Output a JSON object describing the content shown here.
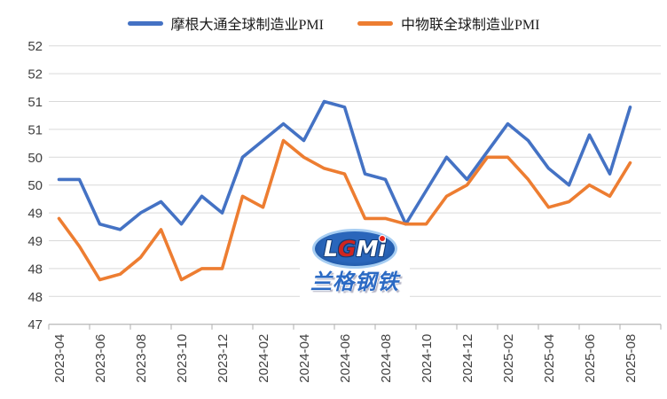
{
  "chart_data": {
    "type": "line",
    "title": "",
    "xlabel": "",
    "ylabel": "",
    "x": [
      "2023-04",
      "2023-05",
      "2023-06",
      "2023-07",
      "2023-08",
      "2023-09",
      "2023-10",
      "2023-11",
      "2023-12",
      "2024-01",
      "2024-02",
      "2024-03",
      "2024-04",
      "2024-05",
      "2024-06",
      "2024-07",
      "2024-08",
      "2024-09",
      "2024-10",
      "2024-11",
      "2024-12",
      "2025-01",
      "2025-02",
      "2025-03",
      "2025-04",
      "2025-05",
      "2025-06",
      "2025-07",
      "2025-08"
    ],
    "series": [
      {
        "name": "摩根大通全球制造业PMI",
        "color": "#4472C4",
        "values": [
          49.6,
          49.6,
          48.8,
          48.7,
          49.0,
          49.2,
          48.8,
          49.3,
          49.0,
          50.0,
          50.3,
          50.6,
          50.3,
          51.0,
          50.9,
          49.7,
          49.6,
          48.8,
          49.4,
          50.0,
          49.6,
          50.1,
          50.6,
          50.3,
          49.8,
          49.5,
          50.4,
          49.7,
          50.9
        ]
      },
      {
        "name": "中物联全球制造业PMI",
        "color": "#ED7D31",
        "values": [
          48.9,
          48.4,
          47.8,
          47.9,
          48.2,
          48.7,
          47.8,
          48.0,
          48.0,
          49.3,
          49.1,
          50.3,
          50.0,
          49.8,
          49.7,
          48.9,
          48.9,
          48.8,
          48.8,
          49.3,
          49.5,
          50.0,
          50.0,
          49.6,
          49.1,
          49.2,
          49.5,
          49.3,
          49.9
        ]
      }
    ],
    "x_axis": {
      "tick_labels": [
        "2023-04",
        "2023-06",
        "2023-08",
        "2023-10",
        "2023-12",
        "2024-02",
        "2024-04",
        "2024-06",
        "2024-08",
        "2024-10",
        "2024-12",
        "2025-02",
        "2025-04",
        "2025-06",
        "2025-08"
      ],
      "label_rotation_deg": 90
    },
    "y_axis": {
      "ylim": [
        47,
        52
      ],
      "tick_values": [
        52,
        51.5,
        51,
        50.5,
        50,
        49.5,
        49,
        48.5,
        48,
        47.5,
        47
      ],
      "tick_labels": [
        "52",
        "52",
        "51",
        "51",
        "50",
        "50",
        "49",
        "49",
        "48",
        "48",
        "47"
      ]
    },
    "grid": true,
    "grid_color": "#D9D9D9",
    "axis_color": "#BFBFBF",
    "label_color": "#404040",
    "legend_position": "top"
  },
  "legend": [
    {
      "label": "摩根大通全球制造业PMI",
      "color": "#4472C4"
    },
    {
      "label": "中物联全球制造业PMI",
      "color": "#ED7D31"
    }
  ],
  "watermark": {
    "l": "L",
    "g": "G",
    "m": "M",
    "i": "i",
    "chinese": "兰格钢铁"
  }
}
